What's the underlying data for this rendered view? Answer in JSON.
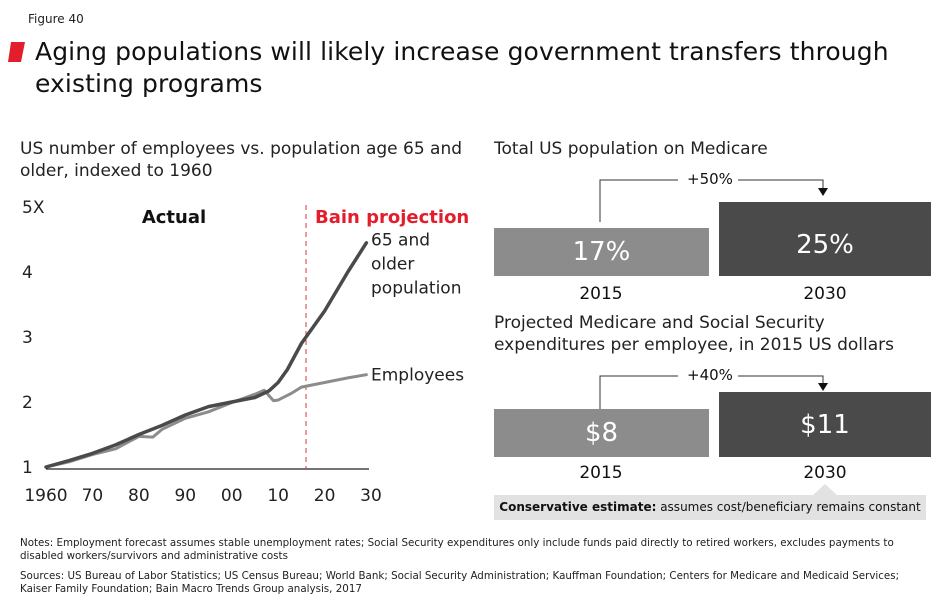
{
  "figure_label": "Figure 40",
  "title": "Aging populations will likely increase government transfers through existing programs",
  "colors": {
    "accent": "#e31d2b",
    "dark": "#4a4a4a",
    "light": "#8c8c8c",
    "projection_line": "#d23b3b",
    "estimate_bg": "#e2e2e2"
  },
  "chart_data": [
    {
      "type": "line",
      "title": "US number of employees vs. population age 65 and older, indexed to 1960",
      "xlabel": "",
      "ylabel": "",
      "xlim": [
        1960,
        2030
      ],
      "ylim": [
        1,
        5
      ],
      "x_ticks": [
        1960,
        1970,
        1980,
        1990,
        2000,
        2010,
        2020,
        2030
      ],
      "x_tick_labels": [
        "1960",
        "70",
        "80",
        "90",
        "00",
        "10",
        "20",
        "30"
      ],
      "y_ticks": [
        1,
        2,
        3,
        4,
        5
      ],
      "y_tick_labels": [
        "1",
        "2",
        "3",
        "4",
        "5X"
      ],
      "annotations": {
        "actual": "Actual",
        "projection": "Bain projection",
        "projection_start": 2016
      },
      "series": [
        {
          "name": "65 and older population",
          "label_lines": [
            "65 and",
            "older",
            "population"
          ],
          "x": [
            1960,
            1965,
            1970,
            1975,
            1980,
            1985,
            1990,
            1995,
            2000,
            2005,
            2008,
            2010,
            2012,
            2015,
            2020,
            2025,
            2029
          ],
          "values": [
            1.0,
            1.1,
            1.21,
            1.34,
            1.5,
            1.64,
            1.8,
            1.93,
            2.0,
            2.07,
            2.17,
            2.3,
            2.5,
            2.9,
            3.4,
            4.0,
            4.45
          ]
        },
        {
          "name": "Employees",
          "label_lines": [
            "Employees"
          ],
          "x": [
            1960,
            1965,
            1970,
            1975,
            1980,
            1983,
            1985,
            1990,
            1995,
            2000,
            2005,
            2007,
            2009,
            2010,
            2013,
            2015,
            2020,
            2025,
            2029
          ],
          "values": [
            1.0,
            1.08,
            1.19,
            1.28,
            1.47,
            1.46,
            1.58,
            1.75,
            1.85,
            1.99,
            2.12,
            2.18,
            2.02,
            2.03,
            2.14,
            2.23,
            2.3,
            2.37,
            2.42
          ]
        }
      ]
    },
    {
      "type": "bar",
      "title": "Total US population on Medicare",
      "categories": [
        "2015",
        "2030"
      ],
      "values": [
        17,
        25
      ],
      "value_labels": [
        "17%",
        "25%"
      ],
      "change_label": "+50%"
    },
    {
      "type": "bar",
      "title": "Projected Medicare and Social Security expenditures per employee, in 2015 US dollars",
      "categories": [
        "2015",
        "2030"
      ],
      "values": [
        8,
        11
      ],
      "value_labels": [
        "$8",
        "$11"
      ],
      "change_label": "+40%"
    }
  ],
  "estimate": {
    "bold": "Conservative estimate:",
    "text": " assumes cost/beneficiary remains constant"
  },
  "notes": [
    "Notes: Employment forecast assumes stable unemployment rates; Social Security expenditures only include funds paid directly to retired workers, excludes payments to disabled workers/survivors and administrative costs",
    "Sources: US Bureau of Labor Statistics; US Census Bureau; World Bank; Social Security Administration; Kauffman Foundation; Centers for Medicare and Medicaid Services; Kaiser Family Foundation; Bain Macro Trends Group analysis, 2017"
  ]
}
